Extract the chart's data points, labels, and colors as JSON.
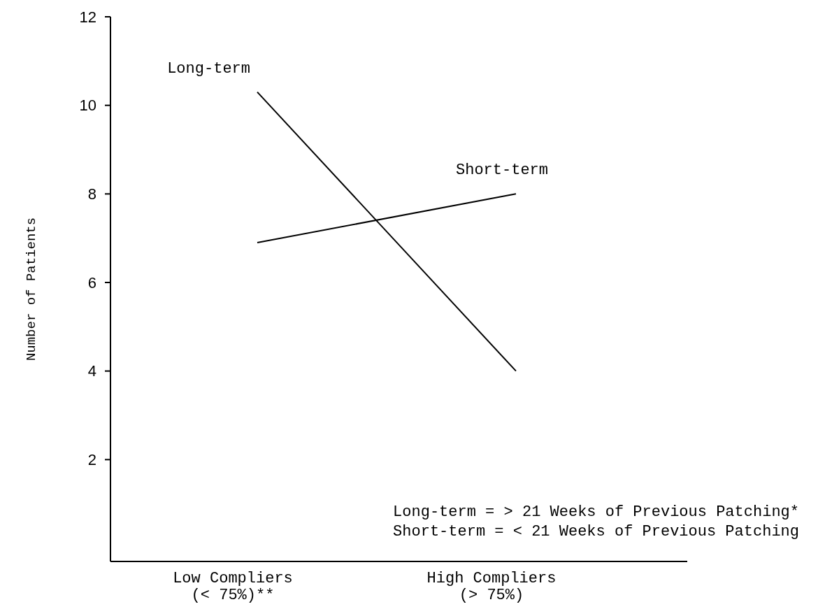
{
  "chart_data": {
    "type": "line",
    "ylabel": "Number of Patients",
    "categories": [
      "Low Compliers\n(< 75%)**",
      "High Compliers\n(> 75%)"
    ],
    "series": [
      {
        "name": "Long-term",
        "color": "#000000",
        "values": [
          10.3,
          4
        ]
      },
      {
        "name": "Short-term",
        "color": "#000000",
        "values": [
          6.9,
          8
        ]
      }
    ],
    "ylim": [
      -0.3,
      12
    ],
    "yticks": [
      2,
      4,
      6,
      8,
      10,
      12
    ],
    "grid": false,
    "marker": "none",
    "line_style": "solid",
    "annotations": [
      "Long-term = > 21 Weeks of Previous Patching*",
      "Short-term = < 21 Weeks of Previous Patching"
    ]
  }
}
